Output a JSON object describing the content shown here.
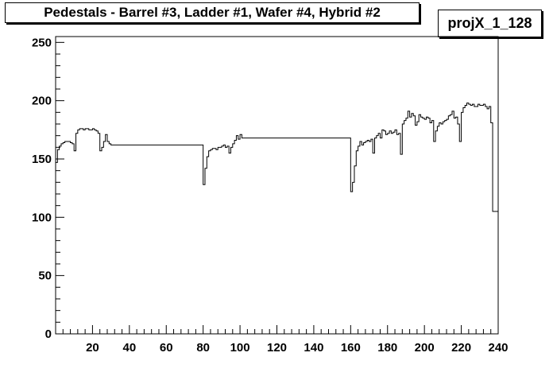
{
  "title": "Pedestals - Barrel #3, Ladder #1, Wafer #4, Hybrid #2",
  "stats_label": "projX_1_128",
  "chart_data": {
    "type": "line",
    "title": "Pedestals - Barrel #3, Ladder #1, Wafer #4, Hybrid #2",
    "xlabel": "",
    "ylabel": "",
    "xlim": [
      0,
      240
    ],
    "ylim": [
      0,
      255
    ],
    "xticks": [
      20,
      40,
      60,
      80,
      100,
      120,
      140,
      160,
      180,
      200,
      220,
      240
    ],
    "yticks": [
      0,
      50,
      100,
      150,
      200,
      250
    ],
    "grid": false,
    "series": [
      {
        "x": [
          0,
          1,
          2,
          3,
          4,
          5,
          6,
          7,
          8,
          9,
          10,
          11,
          12,
          13,
          14,
          15,
          16,
          17,
          18,
          19,
          20,
          21,
          22,
          23,
          24,
          25,
          26,
          27,
          28,
          29,
          30,
          31,
          32,
          33,
          34,
          35,
          36,
          37,
          38,
          39,
          40,
          50,
          60,
          70,
          78,
          79,
          80,
          81,
          82,
          83,
          84,
          85,
          86,
          87,
          88,
          89,
          90,
          91,
          92,
          93,
          94,
          95,
          96,
          97,
          98,
          99,
          100,
          101,
          102,
          103,
          104,
          110,
          120,
          130,
          140,
          150,
          158,
          159,
          160,
          161,
          162,
          163,
          164,
          165,
          166,
          167,
          168,
          169,
          170,
          171,
          172,
          173,
          174,
          175,
          176,
          177,
          178,
          179,
          180,
          181,
          182,
          183,
          184,
          185,
          186,
          187,
          188,
          189,
          190,
          191,
          192,
          193,
          194,
          195,
          196,
          197,
          198,
          199,
          200,
          201,
          202,
          203,
          204,
          205,
          206,
          207,
          208,
          209,
          210,
          211,
          212,
          213,
          214,
          215,
          216,
          217,
          218,
          219,
          220,
          221,
          222,
          223,
          224,
          225,
          226,
          227,
          228,
          229,
          230,
          231,
          232,
          233,
          234,
          235,
          236,
          237,
          238,
          239
        ],
        "y": [
          147,
          158,
          161,
          163,
          164,
          165,
          165,
          165,
          164,
          163,
          157,
          172,
          175,
          176,
          176,
          175,
          176,
          176,
          175,
          175,
          176,
          175,
          174,
          172,
          157,
          160,
          165,
          171,
          165,
          163,
          162,
          162,
          162,
          162,
          162,
          162,
          162,
          162,
          162,
          162,
          162,
          162,
          162,
          162,
          162,
          162,
          128,
          142,
          152,
          157,
          158,
          159,
          159,
          158,
          160,
          160,
          161,
          162,
          160,
          161,
          155,
          160,
          163,
          166,
          170,
          167,
          171,
          168,
          168,
          168,
          168,
          168,
          168,
          168,
          168,
          168,
          168,
          168,
          122,
          130,
          144,
          157,
          161,
          165,
          162,
          164,
          165,
          166,
          165,
          167,
          155,
          168,
          170,
          172,
          168,
          175,
          174,
          171,
          172,
          174,
          172,
          173,
          175,
          171,
          172,
          154,
          180,
          183,
          185,
          191,
          186,
          189,
          187,
          179,
          182,
          188,
          186,
          185,
          184,
          186,
          185,
          181,
          183,
          165,
          174,
          178,
          181,
          180,
          182,
          183,
          184,
          187,
          188,
          191,
          185,
          186,
          180,
          165,
          190,
          194,
          196,
          198,
          197,
          196,
          197,
          195,
          195,
          197,
          196,
          196,
          197,
          195,
          193,
          195,
          181,
          105,
          105,
          105
        ]
      }
    ]
  }
}
